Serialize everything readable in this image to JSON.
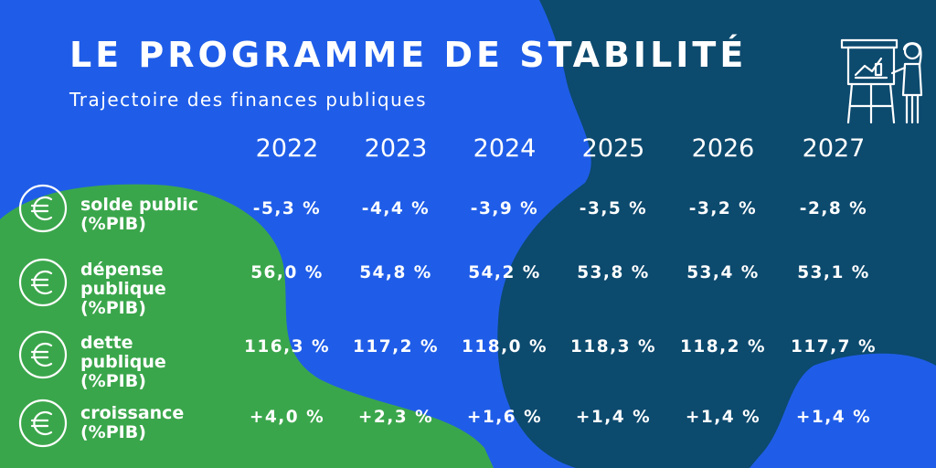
{
  "header": {
    "title": "LE PROGRAMME DE STABILITÉ",
    "subtitle": "Trajectoire des finances publiques"
  },
  "years": [
    "2022",
    "2023",
    "2024",
    "2025",
    "2026",
    "2027"
  ],
  "rows": [
    {
      "label_lines": [
        "solde public",
        "(%PIB)"
      ],
      "values": [
        "-5,3 %",
        "-4,4 %",
        "-3,9 %",
        "-3,5 %",
        "-3,2 %",
        "-2,8 %"
      ]
    },
    {
      "label_lines": [
        "dépense",
        "publique",
        "(%PIB)"
      ],
      "values": [
        "56,0 %",
        "54,8 %",
        "54,2 %",
        "53,8 %",
        "53,4 %",
        "53,1 %"
      ]
    },
    {
      "label_lines": [
        "dette",
        "publique",
        "(%PIB)"
      ],
      "values": [
        "116,3 %",
        "117,2 %",
        "118,0 %",
        "118,3 %",
        "118,2 %",
        "117,7 %"
      ]
    },
    {
      "label_lines": [
        "croissance",
        "(%PIB)"
      ],
      "values": [
        "+4,0 %",
        "+2,3 %",
        "+1,6 %",
        "+1,4 %",
        "+1,4 %",
        "+1,4 %"
      ]
    }
  ],
  "icons": {
    "row_icon": "euro-icon",
    "illustration": "presenter-board-icon"
  },
  "colors": {
    "blue": "#1f5de8",
    "navy": "#0c4a6e",
    "green": "#3aa64b",
    "text": "#ffffff"
  }
}
